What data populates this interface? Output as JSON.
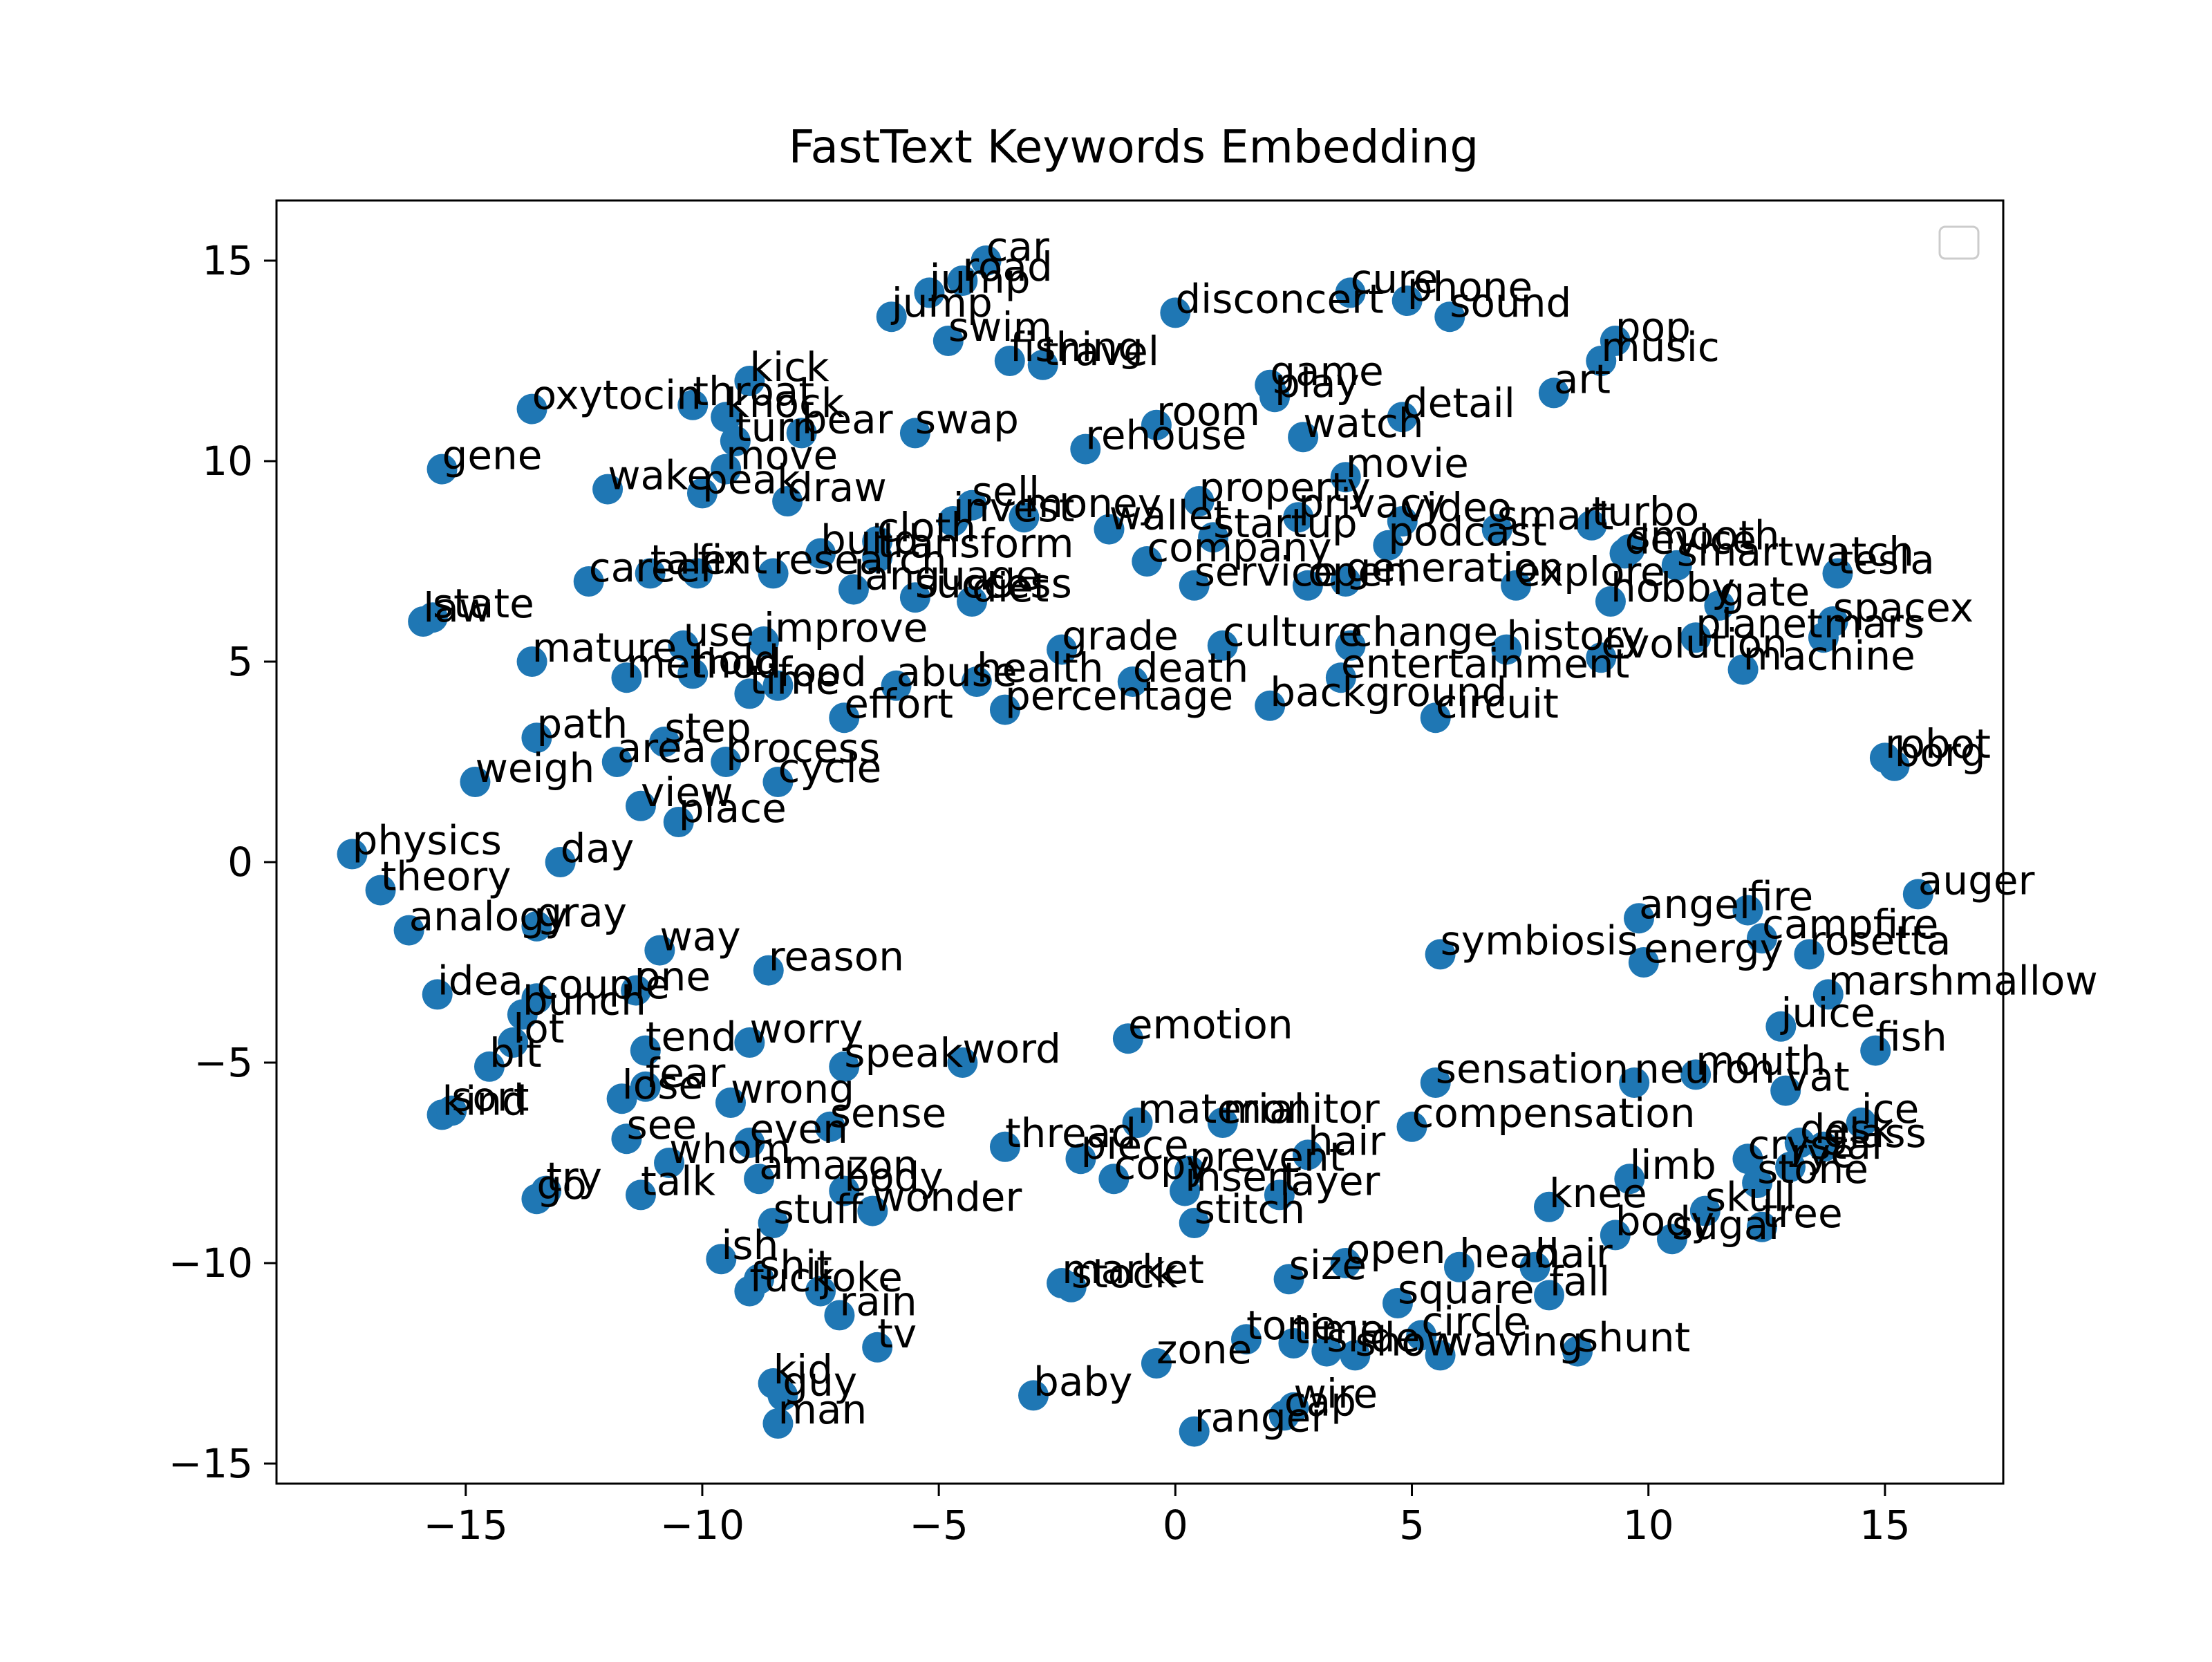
{
  "chart_data": {
    "type": "scatter",
    "title": "FastText Keywords Embedding",
    "xlabel": "",
    "ylabel": "",
    "xlim": [
      -19,
      17.5
    ],
    "ylim": [
      -15.5,
      16.5
    ],
    "xticks": [
      -15,
      -10,
      -5,
      0,
      5,
      10,
      15
    ],
    "yticks": [
      -15,
      -10,
      -5,
      0,
      5,
      10,
      15
    ],
    "xtick_labels": [
      "−15",
      "−10",
      "−5",
      "0",
      "5",
      "10",
      "15"
    ],
    "ytick_labels": [
      "−15",
      "−10",
      "−5",
      "0",
      "5",
      "10",
      "15"
    ],
    "grid": false,
    "legend": "top-right (empty)",
    "marker_color": "#1f77b4",
    "points": [
      {
        "label": "car",
        "x": -4.0,
        "y": 15.0
      },
      {
        "label": "road",
        "x": -4.5,
        "y": 14.5
      },
      {
        "label": "jump",
        "x": -5.2,
        "y": 14.2
      },
      {
        "label": "jump",
        "x": -6.0,
        "y": 13.6
      },
      {
        "label": "swim",
        "x": -4.8,
        "y": 13.0
      },
      {
        "label": "fishing",
        "x": -3.5,
        "y": 12.5
      },
      {
        "label": "travel",
        "x": -2.8,
        "y": 12.4
      },
      {
        "label": "disconcert",
        "x": 0.0,
        "y": 13.7
      },
      {
        "label": "cure",
        "x": 3.7,
        "y": 14.2
      },
      {
        "label": "phone",
        "x": 4.9,
        "y": 14.0
      },
      {
        "label": "sound",
        "x": 5.8,
        "y": 13.6
      },
      {
        "label": "pop",
        "x": 9.3,
        "y": 13.0
      },
      {
        "label": "music",
        "x": 9.0,
        "y": 12.5
      },
      {
        "label": "art",
        "x": 8.0,
        "y": 11.7
      },
      {
        "label": "game",
        "x": 2.0,
        "y": 11.9
      },
      {
        "label": "play",
        "x": 2.1,
        "y": 11.6
      },
      {
        "label": "detail",
        "x": 4.8,
        "y": 11.1
      },
      {
        "label": "watch",
        "x": 2.7,
        "y": 10.6
      },
      {
        "label": "room",
        "x": -0.4,
        "y": 10.9
      },
      {
        "label": "rehouse",
        "x": -1.9,
        "y": 10.3
      },
      {
        "label": "kick",
        "x": -9.0,
        "y": 12.0
      },
      {
        "label": "oxytocin",
        "x": -13.6,
        "y": 11.3
      },
      {
        "label": "throat",
        "x": -10.2,
        "y": 11.4
      },
      {
        "label": "knock",
        "x": -9.5,
        "y": 11.1
      },
      {
        "label": "bear",
        "x": -7.9,
        "y": 10.7
      },
      {
        "label": "swap",
        "x": -5.5,
        "y": 10.7
      },
      {
        "label": "gene",
        "x": -15.5,
        "y": 9.8
      },
      {
        "label": "turn",
        "x": -9.3,
        "y": 10.5
      },
      {
        "label": "wake",
        "x": -12.0,
        "y": 9.3
      },
      {
        "label": "move",
        "x": -9.5,
        "y": 9.8
      },
      {
        "label": "peak",
        "x": -10.0,
        "y": 9.2
      },
      {
        "label": "draw",
        "x": -8.2,
        "y": 9.0
      },
      {
        "label": "property",
        "x": 0.5,
        "y": 9.0
      },
      {
        "label": "movie",
        "x": 3.6,
        "y": 9.6
      },
      {
        "label": "privacy",
        "x": 2.6,
        "y": 8.6
      },
      {
        "label": "video",
        "x": 4.8,
        "y": 8.5
      },
      {
        "label": "sell",
        "x": -4.3,
        "y": 8.9
      },
      {
        "label": "money",
        "x": -3.2,
        "y": 8.6
      },
      {
        "label": "invest",
        "x": -4.7,
        "y": 8.5
      },
      {
        "label": "cloth",
        "x": -6.3,
        "y": 8.0
      },
      {
        "label": "wallet",
        "x": -1.4,
        "y": 8.3
      },
      {
        "label": "startup",
        "x": 0.8,
        "y": 8.1
      },
      {
        "label": "podcast",
        "x": 4.5,
        "y": 7.9
      },
      {
        "label": "smart",
        "x": 6.8,
        "y": 8.3
      },
      {
        "label": "turbo",
        "x": 8.8,
        "y": 8.4
      },
      {
        "label": "smooth",
        "x": 9.6,
        "y": 7.8
      },
      {
        "label": "smartwatch",
        "x": 10.6,
        "y": 7.4
      },
      {
        "label": "tesla",
        "x": 14.0,
        "y": 7.2
      },
      {
        "label": "spacex",
        "x": 13.9,
        "y": 6.0
      },
      {
        "label": "mars",
        "x": 13.7,
        "y": 5.6
      },
      {
        "label": "planet",
        "x": 11.0,
        "y": 5.6
      },
      {
        "label": "gate",
        "x": 11.5,
        "y": 6.4
      },
      {
        "label": "hobby",
        "x": 9.2,
        "y": 6.5
      },
      {
        "label": "device",
        "x": 9.5,
        "y": 7.7
      },
      {
        "label": "transform",
        "x": -6.3,
        "y": 7.6
      },
      {
        "label": "company",
        "x": -0.6,
        "y": 7.5
      },
      {
        "label": "build",
        "x": -7.5,
        "y": 7.7
      },
      {
        "label": "research",
        "x": -8.5,
        "y": 7.2
      },
      {
        "label": "fix",
        "x": -10.1,
        "y": 7.2
      },
      {
        "label": "career",
        "x": -12.4,
        "y": 7.0
      },
      {
        "label": "talent",
        "x": -11.1,
        "y": 7.2
      },
      {
        "label": "language",
        "x": -6.8,
        "y": 6.8
      },
      {
        "label": "success",
        "x": -5.5,
        "y": 6.6
      },
      {
        "label": "diet",
        "x": -4.3,
        "y": 6.5
      },
      {
        "label": "service",
        "x": 0.4,
        "y": 6.9
      },
      {
        "label": "open",
        "x": 2.8,
        "y": 6.9
      },
      {
        "label": "generation",
        "x": 3.6,
        "y": 7.0
      },
      {
        "label": "explore",
        "x": 7.2,
        "y": 6.9
      },
      {
        "label": "law",
        "x": -15.9,
        "y": 6.0
      },
      {
        "label": "state",
        "x": -15.7,
        "y": 6.1
      },
      {
        "label": "mature",
        "x": -13.6,
        "y": 5.0
      },
      {
        "label": "use",
        "x": -10.4,
        "y": 5.4
      },
      {
        "label": "improve",
        "x": -8.7,
        "y": 5.5
      },
      {
        "label": "grade",
        "x": -2.4,
        "y": 5.3
      },
      {
        "label": "culture",
        "x": 1.0,
        "y": 5.4
      },
      {
        "label": "change",
        "x": 3.7,
        "y": 5.4
      },
      {
        "label": "history",
        "x": 7.0,
        "y": 5.3
      },
      {
        "label": "evolution",
        "x": 9.0,
        "y": 5.1
      },
      {
        "label": "machine",
        "x": 12.0,
        "y": 4.8
      },
      {
        "label": "method",
        "x": -11.6,
        "y": 4.6
      },
      {
        "label": "hold",
        "x": -10.2,
        "y": 4.7
      },
      {
        "label": "food",
        "x": -8.4,
        "y": 4.4
      },
      {
        "label": "time",
        "x": -9.0,
        "y": 4.2
      },
      {
        "label": "abuse",
        "x": -5.9,
        "y": 4.4
      },
      {
        "label": "health",
        "x": -4.2,
        "y": 4.5
      },
      {
        "label": "death",
        "x": -0.9,
        "y": 4.5
      },
      {
        "label": "entertainment",
        "x": 3.5,
        "y": 4.6
      },
      {
        "label": "percentage",
        "x": -3.6,
        "y": 3.8
      },
      {
        "label": "background",
        "x": 2.0,
        "y": 3.9
      },
      {
        "label": "circuit",
        "x": 5.5,
        "y": 3.6
      },
      {
        "label": "effort",
        "x": -7.0,
        "y": 3.6
      },
      {
        "label": "path",
        "x": -13.5,
        "y": 3.1
      },
      {
        "label": "step",
        "x": -10.8,
        "y": 3.0
      },
      {
        "label": "area",
        "x": -11.8,
        "y": 2.5
      },
      {
        "label": "process",
        "x": -9.5,
        "y": 2.5
      },
      {
        "label": "weigh",
        "x": -14.8,
        "y": 2.0
      },
      {
        "label": "cycle",
        "x": -8.4,
        "y": 2.0
      },
      {
        "label": "view",
        "x": -11.3,
        "y": 1.4
      },
      {
        "label": "place",
        "x": -10.5,
        "y": 1.0
      },
      {
        "label": "robot",
        "x": 15.0,
        "y": 2.6
      },
      {
        "label": "borg",
        "x": 15.2,
        "y": 2.4
      },
      {
        "label": "physics",
        "x": -17.4,
        "y": 0.2
      },
      {
        "label": "day",
        "x": -13.0,
        "y": 0.0
      },
      {
        "label": "theory",
        "x": -16.8,
        "y": -0.7
      },
      {
        "label": "analogy",
        "x": -16.2,
        "y": -1.7
      },
      {
        "label": "gray",
        "x": -13.5,
        "y": -1.6
      },
      {
        "label": "way",
        "x": -10.9,
        "y": -2.2
      },
      {
        "label": "reason",
        "x": -8.6,
        "y": -2.7
      },
      {
        "label": "fire",
        "x": 12.1,
        "y": -1.2
      },
      {
        "label": "auger",
        "x": 15.7,
        "y": -0.8
      },
      {
        "label": "campfire",
        "x": 12.4,
        "y": -1.9
      },
      {
        "label": "rosetta",
        "x": 13.4,
        "y": -2.3
      },
      {
        "label": "angel",
        "x": 9.8,
        "y": -1.4
      },
      {
        "label": "symbiosis",
        "x": 5.6,
        "y": -2.3
      },
      {
        "label": "energy",
        "x": 9.9,
        "y": -2.5
      },
      {
        "label": "idea",
        "x": -15.6,
        "y": -3.3
      },
      {
        "label": "one",
        "x": -11.4,
        "y": -3.2
      },
      {
        "label": "couple",
        "x": -13.5,
        "y": -3.4
      },
      {
        "label": "bunch",
        "x": -13.8,
        "y": -3.8
      },
      {
        "label": "marshmallow",
        "x": 13.8,
        "y": -3.3
      },
      {
        "label": "juice",
        "x": 12.8,
        "y": -4.1
      },
      {
        "label": "fish",
        "x": 14.8,
        "y": -4.7
      },
      {
        "label": "lot",
        "x": -14.0,
        "y": -4.5
      },
      {
        "label": "bit",
        "x": -14.5,
        "y": -5.1
      },
      {
        "label": "kind",
        "x": -15.5,
        "y": -6.3
      },
      {
        "label": "sort",
        "x": -15.3,
        "y": -6.2
      },
      {
        "label": "tend",
        "x": -11.2,
        "y": -4.7
      },
      {
        "label": "worry",
        "x": -9.0,
        "y": -4.5
      },
      {
        "label": "speak",
        "x": -7.0,
        "y": -5.1
      },
      {
        "label": "word",
        "x": -4.5,
        "y": -5.0
      },
      {
        "label": "emotion",
        "x": -1.0,
        "y": -4.4
      },
      {
        "label": "mouth",
        "x": 11.0,
        "y": -5.3
      },
      {
        "label": "vat",
        "x": 12.9,
        "y": -5.7
      },
      {
        "label": "neuron",
        "x": 9.7,
        "y": -5.5
      },
      {
        "label": "ice",
        "x": 14.5,
        "y": -6.5
      },
      {
        "label": "desk",
        "x": 13.2,
        "y": -7.0
      },
      {
        "label": "glass",
        "x": 13.7,
        "y": -7.1
      },
      {
        "label": "rye",
        "x": 13.0,
        "y": -7.6
      },
      {
        "label": "stone",
        "x": 12.3,
        "y": -8.0
      },
      {
        "label": "tree",
        "x": 12.4,
        "y": -9.1
      },
      {
        "label": "skull",
        "x": 11.2,
        "y": -8.7
      },
      {
        "label": "crystal",
        "x": 12.1,
        "y": -7.4
      },
      {
        "label": "lose",
        "x": -11.7,
        "y": -5.9
      },
      {
        "label": "fear",
        "x": -11.2,
        "y": -5.6
      },
      {
        "label": "wrong",
        "x": -9.4,
        "y": -6.0
      },
      {
        "label": "sense",
        "x": -7.3,
        "y": -6.6
      },
      {
        "label": "sensation",
        "x": 5.5,
        "y": -5.5
      },
      {
        "label": "compensation",
        "x": 5.0,
        "y": -6.6
      },
      {
        "label": "monitor",
        "x": 1.0,
        "y": -6.5
      },
      {
        "label": "material",
        "x": -0.8,
        "y": -6.5
      },
      {
        "label": "see",
        "x": -11.6,
        "y": -6.9
      },
      {
        "label": "even",
        "x": -9.0,
        "y": -7.0
      },
      {
        "label": "thread",
        "x": -3.6,
        "y": -7.1
      },
      {
        "label": "piece",
        "x": -2.0,
        "y": -7.4
      },
      {
        "label": "prevent",
        "x": 0.3,
        "y": -7.7
      },
      {
        "label": "hair",
        "x": 2.8,
        "y": -7.3
      },
      {
        "label": "whom",
        "x": -10.7,
        "y": -7.5
      },
      {
        "label": "amazon",
        "x": -8.8,
        "y": -7.9
      },
      {
        "label": "talk",
        "x": -11.3,
        "y": -8.3
      },
      {
        "label": "try",
        "x": -13.3,
        "y": -8.2
      },
      {
        "label": "go",
        "x": -13.5,
        "y": -8.4
      },
      {
        "label": "body",
        "x": -7.0,
        "y": -8.2
      },
      {
        "label": "copy",
        "x": -1.3,
        "y": -7.9
      },
      {
        "label": "insert",
        "x": 0.2,
        "y": -8.2
      },
      {
        "label": "layer",
        "x": 2.2,
        "y": -8.3
      },
      {
        "label": "stuff",
        "x": -8.5,
        "y": -9.0
      },
      {
        "label": "wonder",
        "x": -6.4,
        "y": -8.7
      },
      {
        "label": "stitch",
        "x": 0.4,
        "y": -9.0
      },
      {
        "label": "limb",
        "x": 9.6,
        "y": -7.9
      },
      {
        "label": "knee",
        "x": 7.9,
        "y": -8.6
      },
      {
        "label": "body",
        "x": 9.3,
        "y": -9.3
      },
      {
        "label": "sugar",
        "x": 10.5,
        "y": -9.4
      },
      {
        "label": "ish",
        "x": -9.6,
        "y": -9.9
      },
      {
        "label": "shit",
        "x": -8.8,
        "y": -10.4
      },
      {
        "label": "fuck",
        "x": -9.0,
        "y": -10.7
      },
      {
        "label": "joke",
        "x": -7.5,
        "y": -10.7
      },
      {
        "label": "rain",
        "x": -7.1,
        "y": -11.3
      },
      {
        "label": "tv",
        "x": -6.3,
        "y": -12.1
      },
      {
        "label": "market",
        "x": -2.4,
        "y": -10.5
      },
      {
        "label": "stock",
        "x": -2.2,
        "y": -10.6
      },
      {
        "label": "size",
        "x": 2.4,
        "y": -10.4
      },
      {
        "label": "open",
        "x": 3.6,
        "y": -10.0
      },
      {
        "label": "head",
        "x": 6.0,
        "y": -10.1
      },
      {
        "label": "hair",
        "x": 7.6,
        "y": -10.1
      },
      {
        "label": "fall",
        "x": 7.9,
        "y": -10.8
      },
      {
        "label": "square",
        "x": 4.7,
        "y": -11.0
      },
      {
        "label": "shunt",
        "x": 8.5,
        "y": -12.2
      },
      {
        "label": "circle",
        "x": 5.2,
        "y": -11.8
      },
      {
        "label": "waving",
        "x": 5.6,
        "y": -12.3
      },
      {
        "label": "zone",
        "x": -0.4,
        "y": -12.5
      },
      {
        "label": "tone",
        "x": 1.5,
        "y": -11.9
      },
      {
        "label": "time",
        "x": 2.5,
        "y": -12.0
      },
      {
        "label": "slide",
        "x": 3.2,
        "y": -12.2
      },
      {
        "label": "show",
        "x": 3.8,
        "y": -12.3
      },
      {
        "label": "baby",
        "x": -3.0,
        "y": -13.3
      },
      {
        "label": "kid",
        "x": -8.5,
        "y": -13.0
      },
      {
        "label": "guy",
        "x": -8.3,
        "y": -13.3
      },
      {
        "label": "man",
        "x": -8.4,
        "y": -14.0
      },
      {
        "label": "wire",
        "x": 2.5,
        "y": -13.6
      },
      {
        "label": "cap",
        "x": 2.3,
        "y": -13.8
      },
      {
        "label": "ranger",
        "x": 0.4,
        "y": -14.2
      }
    ]
  }
}
